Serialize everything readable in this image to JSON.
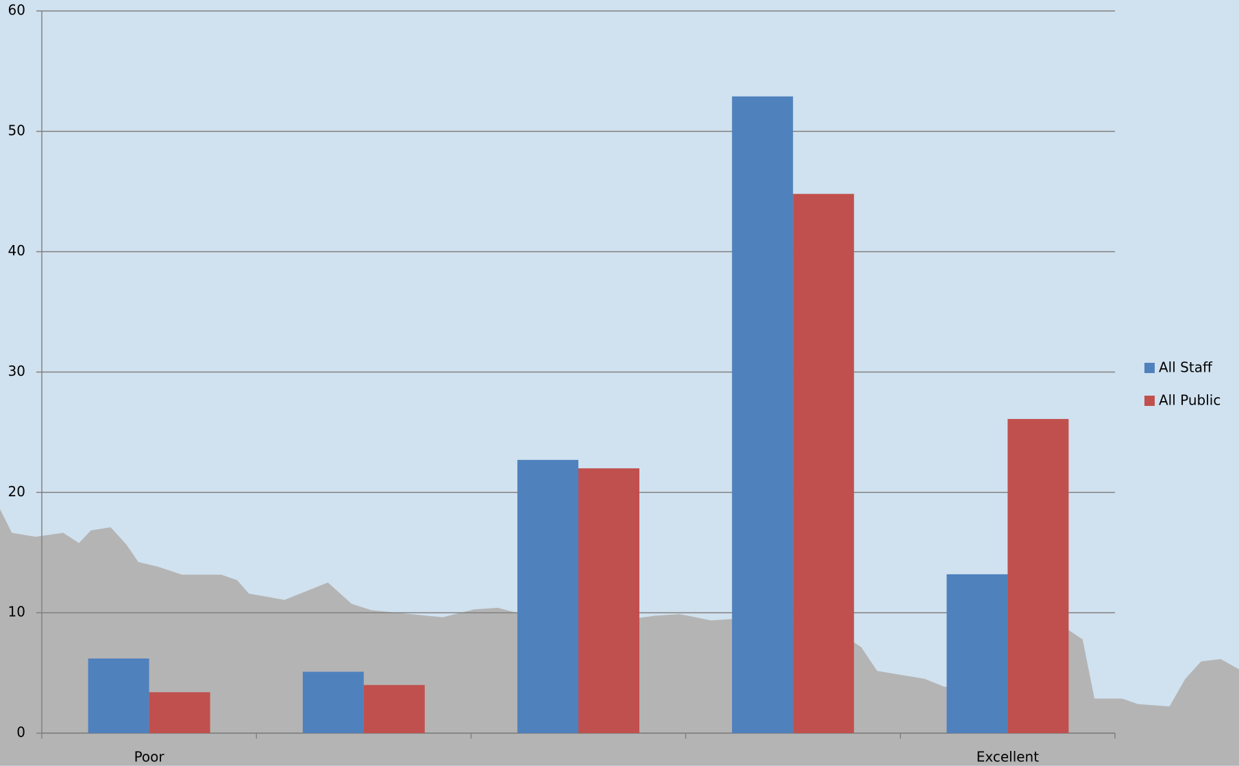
{
  "chart_data": {
    "type": "bar",
    "categories": [
      "Poor",
      null,
      null,
      null,
      "Excellent"
    ],
    "series": [
      {
        "name": "All Staff",
        "color": "#4f81bd",
        "values": [
          6.2,
          5.1,
          22.7,
          52.9,
          13.2
        ]
      },
      {
        "name": "All Public",
        "color": "#c0504d",
        "values": [
          3.4,
          4.0,
          22.0,
          44.8,
          26.1
        ]
      }
    ],
    "ylim": [
      0,
      60
    ],
    "yticks": [
      0,
      10,
      20,
      30,
      40,
      50,
      60
    ],
    "grid": true,
    "legend": "right"
  }
}
